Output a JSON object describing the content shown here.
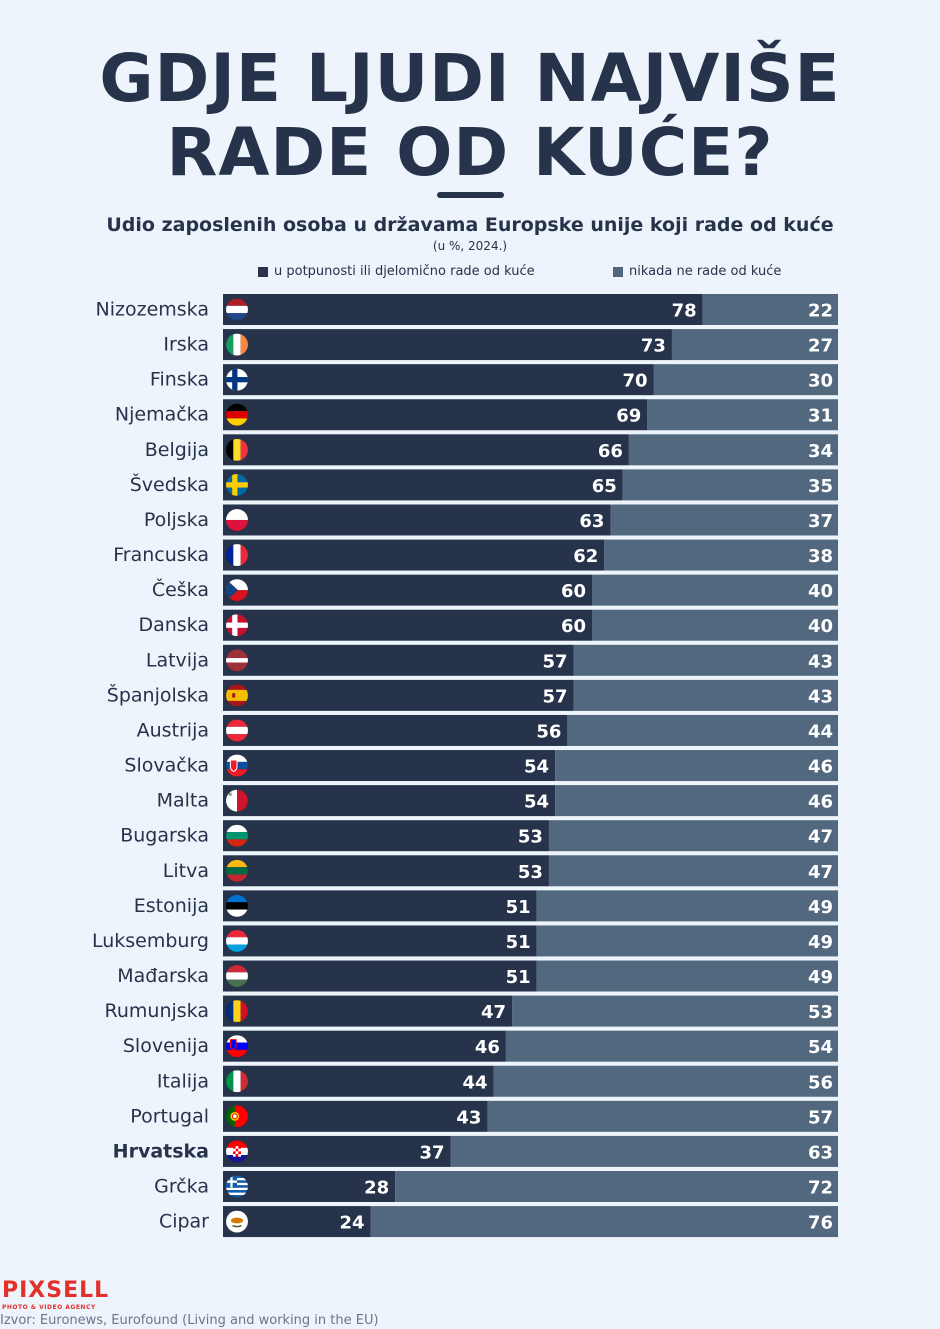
{
  "header": {
    "title_line1": "GDJE LJUDI NAJVIŠE",
    "title_line2": "RADE OD KUĆE?",
    "subtitle": "Udio zaposlenih osoba u državama Europske unije koji rade od kuće",
    "note": "(u %, 2024.)"
  },
  "legend": {
    "home_label": "u potpunosti ili djelomično rade od kuće",
    "never_label": "nikada ne rade od kuće"
  },
  "colors": {
    "home": "#27334a",
    "never": "#52687e",
    "background": "#eef4fb"
  },
  "chart_data": {
    "type": "bar",
    "orientation": "horizontal",
    "stacked": true,
    "categories": [
      "Nizozemska",
      "Irska",
      "Finska",
      "Njemačka",
      "Belgija",
      "Švedska",
      "Poljska",
      "Francuska",
      "Češka",
      "Danska",
      "Latvija",
      "Španjolska",
      "Austrija",
      "Slovačka",
      "Malta",
      "Bugarska",
      "Litva",
      "Estonija",
      "Luksemburg",
      "Mađarska",
      "Rumunjska",
      "Slovenija",
      "Italija",
      "Portugal",
      "Hrvatska",
      "Grčka",
      "Cipar"
    ],
    "highlight": "Hrvatska",
    "flag_icons": [
      "flag-nl-icon",
      "flag-ie-icon",
      "flag-fi-icon",
      "flag-de-icon",
      "flag-be-icon",
      "flag-se-icon",
      "flag-pl-icon",
      "flag-fr-icon",
      "flag-cz-icon",
      "flag-dk-icon",
      "flag-lv-icon",
      "flag-es-icon",
      "flag-at-icon",
      "flag-sk-icon",
      "flag-mt-icon",
      "flag-bg-icon",
      "flag-lt-icon",
      "flag-ee-icon",
      "flag-lu-icon",
      "flag-hu-icon",
      "flag-ro-icon",
      "flag-si-icon",
      "flag-it-icon",
      "flag-pt-icon",
      "flag-hr-icon",
      "flag-gr-icon",
      "flag-cy-icon"
    ],
    "series": [
      {
        "name": "u potpunosti ili djelomično rade od kuće",
        "values": [
          78,
          73,
          70,
          69,
          66,
          65,
          63,
          62,
          60,
          60,
          57,
          57,
          56,
          54,
          54,
          53,
          53,
          51,
          51,
          51,
          47,
          46,
          44,
          43,
          37,
          28,
          24
        ]
      },
      {
        "name": "nikada ne rade od kuće",
        "values": [
          22,
          27,
          30,
          31,
          34,
          35,
          37,
          38,
          40,
          40,
          43,
          43,
          44,
          46,
          46,
          47,
          47,
          49,
          49,
          49,
          53,
          54,
          56,
          57,
          63,
          72,
          76
        ]
      }
    ],
    "xlim": [
      0,
      100
    ]
  },
  "footer": {
    "logo": "PIXSELL",
    "logo_tagline": "PHOTO & VIDEO AGENCY",
    "source": "Izvor: Euronews, Eurofound (Living and working in the EU)"
  }
}
